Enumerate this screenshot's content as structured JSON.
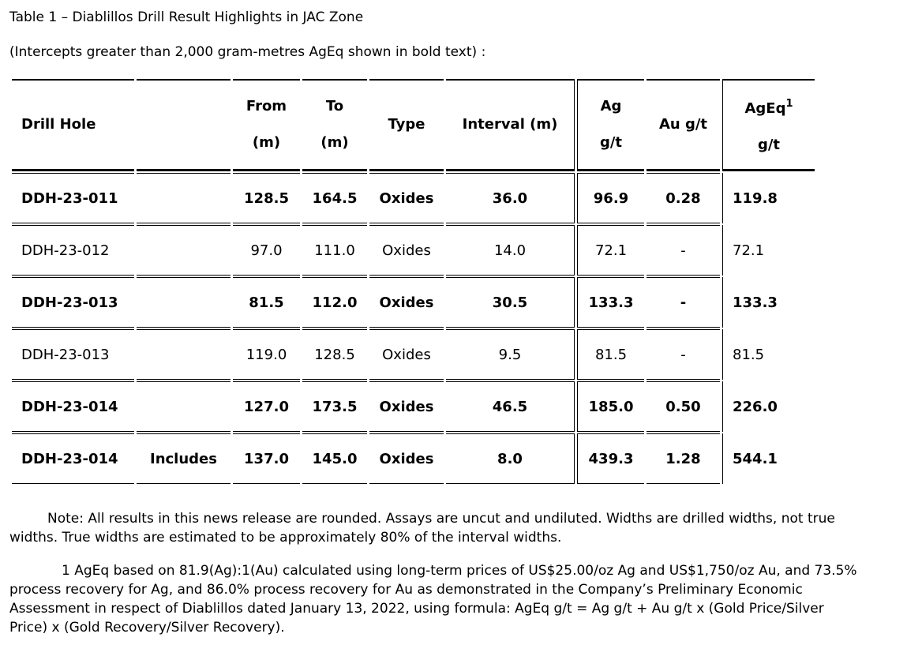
{
  "title": "Table 1 – Diablillos Drill Result Highlights in JAC Zone",
  "subtitle": "(Intercepts greater than 2,000 gram-metres AgEq shown in bold text) :",
  "headers": {
    "drill_hole": "Drill Hole",
    "from": "From",
    "from_unit": "(m)",
    "to": "To",
    "to_unit": "(m)",
    "type": "Type",
    "interval": "Interval (m)",
    "ag": "Ag",
    "ag_unit": "g/t",
    "au": "Au g/t",
    "ageq": "AgEq",
    "ageq_sup": "1",
    "ageq_unit": "g/t"
  },
  "rows": [
    {
      "hole": "DDH-23-011",
      "note": "",
      "from": "128.5",
      "to": "164.5",
      "type": "Oxides",
      "interval": "36.0",
      "ag": "96.9",
      "au": "0.28",
      "ageq": "119.8",
      "bold": true
    },
    {
      "hole": "DDH-23-012",
      "note": "",
      "from": "97.0",
      "to": "111.0",
      "type": "Oxides",
      "interval": "14.0",
      "ag": "72.1",
      "au": "-",
      "ageq": "72.1",
      "bold": false
    },
    {
      "hole": "DDH-23-013",
      "note": "",
      "from": "81.5",
      "to": "112.0",
      "type": "Oxides",
      "interval": "30.5",
      "ag": "133.3",
      "au": "-",
      "ageq": "133.3",
      "bold": true
    },
    {
      "hole": "DDH-23-013",
      "note": "",
      "from": "119.0",
      "to": "128.5",
      "type": "Oxides",
      "interval": "9.5",
      "ag": "81.5",
      "au": "-",
      "ageq": "81.5",
      "bold": false
    },
    {
      "hole": "DDH-23-014",
      "note": "",
      "from": "127.0",
      "to": "173.5",
      "type": "Oxides",
      "interval": "46.5",
      "ag": "185.0",
      "au": "0.50",
      "ageq": "226.0",
      "bold": true
    },
    {
      "hole": "DDH-23-014",
      "note": "Includes",
      "from": "137.0",
      "to": "145.0",
      "type": "Oxides",
      "interval": "8.0",
      "ag": "439.3",
      "au": "1.28",
      "ageq": "544.1",
      "bold": true
    }
  ],
  "note1": "Note:  All results in this news release are rounded. Assays are uncut and undiluted. Widths are drilled widths, not true widths. True widths are estimated to be approximately 80% of the interval widths.",
  "note2": "1 AgEq based on 81.9(Ag):1(Au) calculated using long-term prices of US$25.00/oz Ag and US$1,750/oz Au, and 73.5% process recovery for Ag, and 86.0% process recovery for Au as demonstrated in the Company’s Preliminary Economic Assessment in respect of Diablillos dated January 13, 2022, using formula:  AgEq g/t = Ag g/t + Au g/t x (Gold Price/Silver Price) x (Gold Recovery/Silver Recovery)."
}
